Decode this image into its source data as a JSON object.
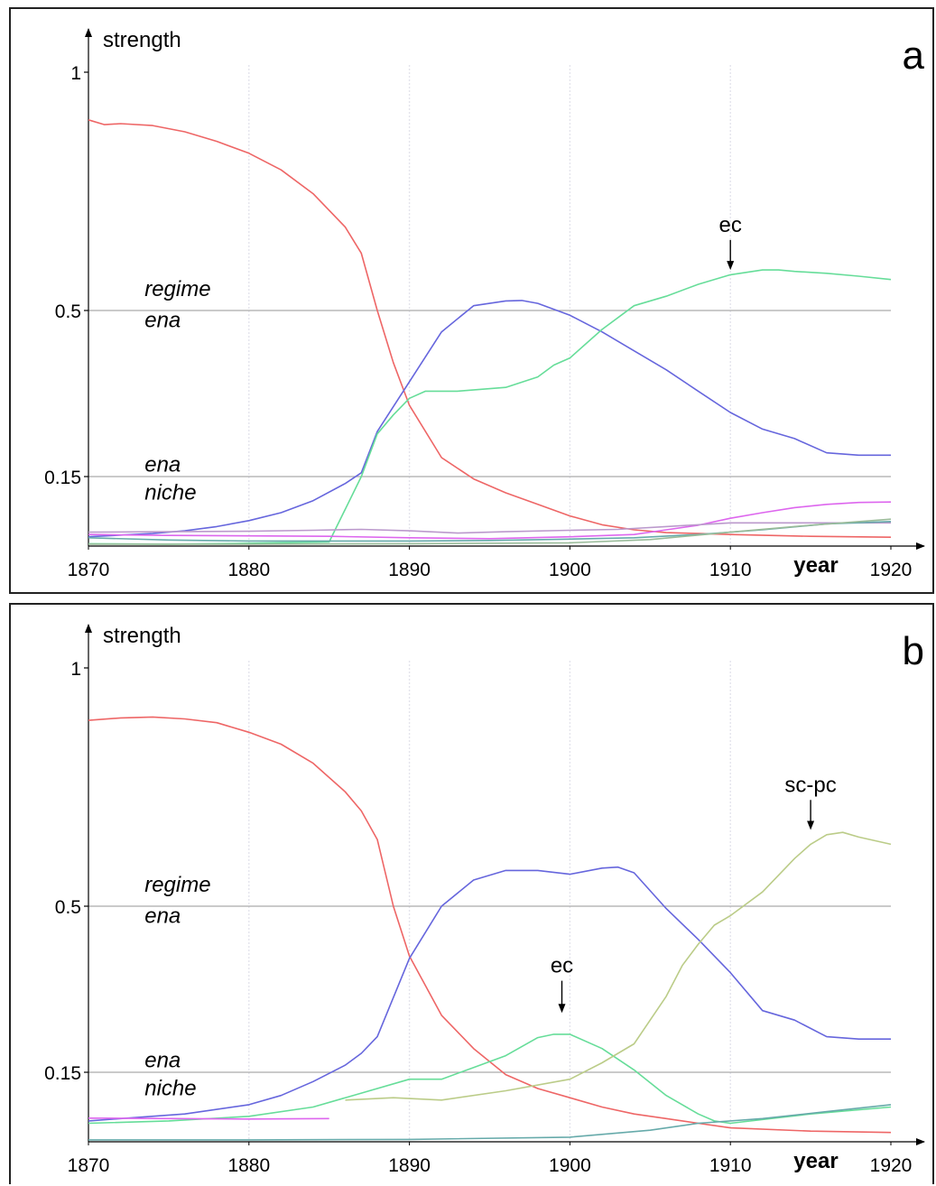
{
  "chart_data": [
    {
      "type": "line",
      "panel_label": "a",
      "ylabel": "strength",
      "xlabel": "year",
      "x_ticks": [
        1870,
        1880,
        1890,
        1900,
        1910,
        1920
      ],
      "y_ticks": [
        {
          "value": 1,
          "label": "1"
        },
        {
          "value": 0.5,
          "label": "0.5"
        },
        {
          "value": 0.15,
          "label": "0.15"
        }
      ],
      "y_scale": "nonlinear (0.15 and 0.5 gridlines as shown)",
      "xlim": [
        1870,
        1920
      ],
      "ylim": [
        0,
        1.05
      ],
      "grid": {
        "horizontal": [
          0.5,
          0.15
        ],
        "vertical": [
          1880,
          1890,
          1900,
          1910
        ]
      },
      "annotations": [
        {
          "text": "regime",
          "italic": true,
          "x": 1873.5,
          "y": 0.53
        },
        {
          "text": "ena",
          "italic": true,
          "x": 1873.5,
          "y": 0.465
        },
        {
          "text": "ena",
          "italic": true,
          "x": 1873.5,
          "y": 0.16
        },
        {
          "text": "niche",
          "italic": true,
          "x": 1873.5,
          "y": 0.1
        },
        {
          "text": "ec",
          "x": 1910,
          "y": 0.665,
          "arrow_to_y": 0.585
        }
      ],
      "series": [
        {
          "color": "#ee6666",
          "x": [
            1870,
            1871,
            1872,
            1874,
            1876,
            1878,
            1880,
            1882,
            1884,
            1886,
            1887,
            1888,
            1889,
            1890,
            1892,
            1894,
            1896,
            1898,
            1900,
            1902,
            1904,
            1906,
            1908,
            1910,
            1915,
            1920
          ],
          "y": [
            0.9,
            0.89,
            0.892,
            0.888,
            0.875,
            0.855,
            0.83,
            0.795,
            0.745,
            0.675,
            0.62,
            0.5,
            0.39,
            0.3,
            0.19,
            0.145,
            0.115,
            0.09,
            0.065,
            0.046,
            0.035,
            0.029,
            0.027,
            0.025,
            0.021,
            0.019
          ]
        },
        {
          "color": "#6666dd",
          "x": [
            1870,
            1874,
            1876,
            1878,
            1880,
            1882,
            1884,
            1886,
            1887,
            1888,
            1890,
            1892,
            1894,
            1896,
            1897,
            1898,
            1900,
            1902,
            1904,
            1906,
            1908,
            1910,
            1912,
            1914,
            1916,
            1918,
            1920
          ],
          "y": [
            0.02,
            0.027,
            0.033,
            0.042,
            0.055,
            0.072,
            0.098,
            0.135,
            0.158,
            0.245,
            0.35,
            0.455,
            0.51,
            0.52,
            0.521,
            0.515,
            0.49,
            0.455,
            0.415,
            0.375,
            0.33,
            0.285,
            0.25,
            0.23,
            0.2,
            0.195,
            0.195
          ]
        },
        {
          "color": "#66dd99",
          "x": [
            1870,
            1875,
            1880,
            1885,
            1887,
            1888,
            1889,
            1890,
            1891,
            1893,
            1896,
            1898,
            1899,
            1900,
            1902,
            1904,
            1906,
            1908,
            1910,
            1912,
            1913,
            1914,
            1916,
            1918,
            1920
          ],
          "y": [
            0.005,
            0.004,
            0.006,
            0.009,
            0.15,
            0.24,
            0.28,
            0.315,
            0.33,
            0.33,
            0.338,
            0.36,
            0.385,
            0.4,
            0.46,
            0.51,
            0.53,
            0.555,
            0.575,
            0.585,
            0.585,
            0.582,
            0.578,
            0.572,
            0.565
          ]
        },
        {
          "color": "#dd66ee",
          "x": [
            1870,
            1875,
            1880,
            1885,
            1890,
            1895,
            1900,
            1904,
            1906,
            1908,
            1910,
            1912,
            1914,
            1916,
            1918,
            1920
          ],
          "y": [
            0.025,
            0.023,
            0.022,
            0.021,
            0.018,
            0.016,
            0.02,
            0.025,
            0.035,
            0.045,
            0.06,
            0.072,
            0.083,
            0.09,
            0.094,
            0.095
          ]
        },
        {
          "color": "#bb99cc",
          "x": [
            1870,
            1875,
            1880,
            1884,
            1887,
            1890,
            1893,
            1896,
            1900,
            1903,
            1906,
            1910,
            1915,
            1920
          ],
          "y": [
            0.03,
            0.031,
            0.032,
            0.034,
            0.036,
            0.033,
            0.028,
            0.031,
            0.034,
            0.036,
            0.042,
            0.05,
            0.05,
            0.05
          ]
        },
        {
          "color": "#66aaaa",
          "x": [
            1870,
            1875,
            1880,
            1885,
            1890,
            1895,
            1900,
            1904,
            1908,
            1912,
            1916,
            1920
          ],
          "y": [
            0.018,
            0.013,
            0.011,
            0.011,
            0.011,
            0.012,
            0.015,
            0.018,
            0.025,
            0.035,
            0.048,
            0.053
          ]
        },
        {
          "color": "#99bb99",
          "x": [
            1870,
            1880,
            1890,
            1900,
            1905,
            1910,
            1915,
            1920
          ],
          "y": [
            0.004,
            0.004,
            0.005,
            0.007,
            0.014,
            0.03,
            0.045,
            0.058
          ]
        }
      ]
    },
    {
      "type": "line",
      "panel_label": "b",
      "ylabel": "strength",
      "xlabel": "year",
      "x_ticks": [
        1870,
        1880,
        1890,
        1900,
        1910,
        1920
      ],
      "y_ticks": [
        {
          "value": 1,
          "label": "1"
        },
        {
          "value": 0.5,
          "label": "0.5"
        },
        {
          "value": 0.15,
          "label": "0.15"
        }
      ],
      "y_scale": "nonlinear (0.15 and 0.5 gridlines as shown)",
      "xlim": [
        1870,
        1920
      ],
      "ylim": [
        0,
        1.05
      ],
      "grid": {
        "horizontal": [
          0.5,
          0.15
        ],
        "vertical": [
          1880,
          1890,
          1900,
          1910
        ]
      },
      "annotations": [
        {
          "text": "regime",
          "italic": true,
          "x": 1873.5,
          "y": 0.53
        },
        {
          "text": "ena",
          "italic": true,
          "x": 1873.5,
          "y": 0.465
        },
        {
          "text": "ena",
          "italic": true,
          "x": 1873.5,
          "y": 0.16
        },
        {
          "text": "niche",
          "italic": true,
          "x": 1873.5,
          "y": 0.1
        },
        {
          "text": "ec",
          "x": 1899.5,
          "y": 0.36,
          "arrow_to_y": 0.275
        },
        {
          "text": "sc-pc",
          "x": 1915,
          "y": 0.74,
          "arrow_to_y": 0.66
        }
      ],
      "series": [
        {
          "color": "#ee6666",
          "x": [
            1870,
            1872,
            1874,
            1876,
            1878,
            1880,
            1882,
            1884,
            1886,
            1887,
            1888,
            1889,
            1890,
            1892,
            1894,
            1896,
            1898,
            1900,
            1902,
            1904,
            1906,
            1908,
            1910,
            1915,
            1920
          ],
          "y": [
            0.89,
            0.895,
            0.897,
            0.893,
            0.885,
            0.865,
            0.84,
            0.8,
            0.74,
            0.7,
            0.64,
            0.5,
            0.395,
            0.27,
            0.2,
            0.145,
            0.115,
            0.095,
            0.075,
            0.06,
            0.05,
            0.04,
            0.03,
            0.023,
            0.02
          ]
        },
        {
          "color": "#6666dd",
          "x": [
            1870,
            1876,
            1880,
            1882,
            1884,
            1886,
            1887,
            1888,
            1890,
            1892,
            1894,
            1896,
            1898,
            1900,
            1902,
            1903,
            1904,
            1906,
            1908,
            1910,
            1912,
            1914,
            1916,
            1918,
            1920
          ],
          "y": [
            0.045,
            0.06,
            0.08,
            0.1,
            0.13,
            0.165,
            0.19,
            0.225,
            0.39,
            0.5,
            0.555,
            0.575,
            0.575,
            0.567,
            0.58,
            0.582,
            0.57,
            0.495,
            0.43,
            0.36,
            0.28,
            0.26,
            0.225,
            0.22,
            0.22
          ]
        },
        {
          "color": "#66dd99",
          "x": [
            1870,
            1875,
            1880,
            1884,
            1887,
            1890,
            1892,
            1894,
            1896,
            1898,
            1899,
            1900,
            1902,
            1904,
            1906,
            1908,
            1909,
            1910,
            1915,
            1920
          ],
          "y": [
            0.04,
            0.045,
            0.055,
            0.075,
            0.105,
            0.135,
            0.135,
            0.16,
            0.185,
            0.223,
            0.23,
            0.23,
            0.2,
            0.155,
            0.1,
            0.06,
            0.045,
            0.04,
            0.06,
            0.075
          ]
        },
        {
          "color": "#bbcc88",
          "x": [
            1886,
            1889,
            1892,
            1896,
            1900,
            1902,
            1904,
            1906,
            1907,
            1908,
            1909,
            1910,
            1912,
            1914,
            1915,
            1916,
            1917,
            1918,
            1920
          ],
          "y": [
            0.09,
            0.095,
            0.09,
            0.11,
            0.135,
            0.17,
            0.21,
            0.31,
            0.375,
            0.42,
            0.46,
            0.48,
            0.53,
            0.6,
            0.63,
            0.65,
            0.655,
            0.645,
            0.63
          ]
        },
        {
          "color": "#dd66ee",
          "x": [
            1870,
            1875,
            1880,
            1885
          ],
          "y": [
            0.051,
            0.05,
            0.049,
            0.05
          ]
        },
        {
          "color": "#66aaaa",
          "x": [
            1870,
            1880,
            1890,
            1900,
            1905,
            1908,
            1912,
            1916,
            1920
          ],
          "y": [
            0.004,
            0.004,
            0.005,
            0.01,
            0.025,
            0.04,
            0.05,
            0.065,
            0.08
          ]
        }
      ]
    }
  ]
}
